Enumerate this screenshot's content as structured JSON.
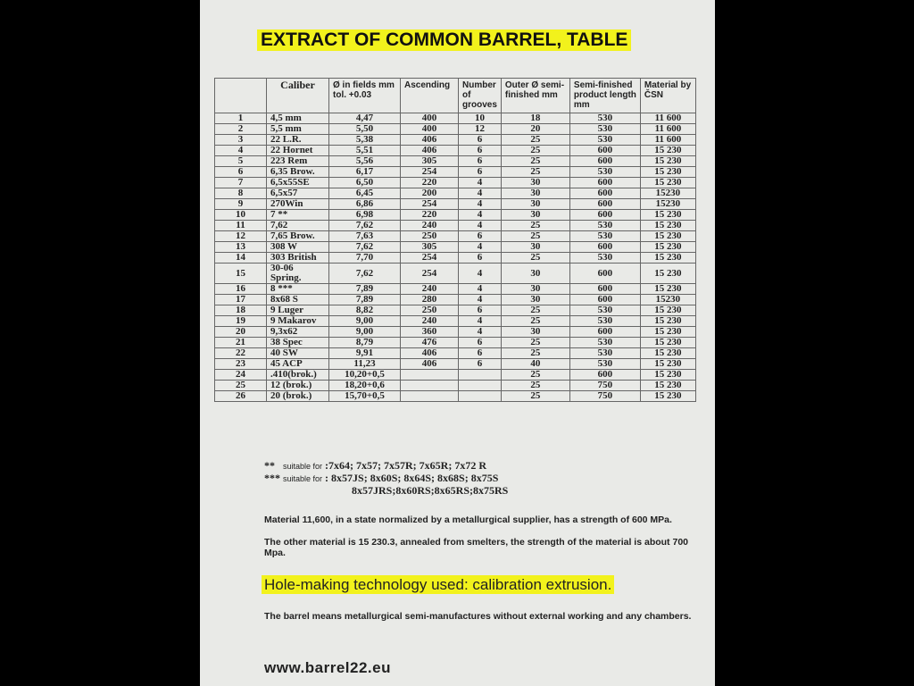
{
  "title": "EXTRACT OF COMMON BARREL, TABLE",
  "table": {
    "headers": [
      "",
      "Caliber",
      "Ø in fields mm tol. +0.03",
      "Ascending",
      "Number of grooves",
      "Outer Ø semi-finished mm",
      "Semi-finished product length mm",
      "Material by ČSN"
    ],
    "rows": [
      [
        "1",
        "4,5 mm",
        "4,47",
        "400",
        "10",
        "18",
        "530",
        "11 600"
      ],
      [
        "2",
        "5,5 mm",
        "5,50",
        "400",
        "12",
        "20",
        "530",
        "11 600"
      ],
      [
        "3",
        "22 L.R.",
        "5,38",
        "406",
        "6",
        "25",
        "530",
        "11 600"
      ],
      [
        "4",
        "22 Hornet",
        "5,51",
        "406",
        "6",
        "25",
        "600",
        "15 230"
      ],
      [
        "5",
        "223 Rem",
        "5,56",
        "305",
        "6",
        "25",
        "600",
        "15 230"
      ],
      [
        "6",
        "6,35 Brow.",
        "6,17",
        "254",
        "6",
        "25",
        "530",
        "15 230"
      ],
      [
        "7",
        "6,5x55SE",
        "6,50",
        "220",
        "4",
        "30",
        "600",
        "15 230"
      ],
      [
        "8",
        "6,5x57",
        "6,45",
        "200",
        "4",
        "30",
        "600",
        "15230"
      ],
      [
        "9",
        "270Win",
        "6,86",
        "254",
        "4",
        "30",
        "600",
        "15230"
      ],
      [
        "10",
        "7 **",
        "6,98",
        "220",
        "4",
        "30",
        "600",
        "15 230"
      ],
      [
        "11",
        "7,62",
        "7,62",
        "240",
        "4",
        "25",
        "530",
        "15 230"
      ],
      [
        "12",
        "7,65 Brow.",
        "7,63",
        "250",
        "6",
        "25",
        "530",
        "15 230"
      ],
      [
        "13",
        "308 W",
        "7,62",
        "305",
        "4",
        "30",
        "600",
        "15 230"
      ],
      [
        "14",
        "303 British",
        "7,70",
        "254",
        "6",
        "25",
        "530",
        "15 230"
      ],
      [
        "15",
        "30-06 Spring.",
        "7,62",
        "254",
        "4",
        "30",
        "600",
        "15 230"
      ],
      [
        "16",
        "8 ***",
        "7,89",
        "240",
        "4",
        "30",
        "600",
        "15 230"
      ],
      [
        "17",
        "8x68 S",
        "7,89",
        "280",
        "4",
        "30",
        "600",
        "15230"
      ],
      [
        "18",
        "9 Luger",
        "8,82",
        "250",
        "6",
        "25",
        "530",
        "15 230"
      ],
      [
        "19",
        "9 Makarov",
        "9,00",
        "240",
        "4",
        "25",
        "530",
        "15 230"
      ],
      [
        "20",
        "9,3x62",
        "9,00",
        "360",
        "4",
        "30",
        "600",
        "15 230"
      ],
      [
        "21",
        "38 Spec",
        "8,79",
        "476",
        "6",
        "25",
        "530",
        "15 230"
      ],
      [
        "22",
        "40 SW",
        "9,91",
        "406",
        "6",
        "25",
        "530",
        "15 230"
      ],
      [
        "23",
        "45 ACP",
        "11,23",
        "406",
        "6",
        "40",
        "530",
        "15 230"
      ],
      [
        "24",
        ".410(brok.)",
        "10,20+0,5",
        "",
        "",
        "25",
        "600",
        "15 230"
      ],
      [
        "25",
        "12 (brok.)",
        "18,20+0,6",
        "",
        "",
        "25",
        "750",
        "15 230"
      ],
      [
        "26",
        "20 (brok.)",
        "15,70+0,5",
        "",
        "",
        "25",
        "750",
        "15 230"
      ]
    ]
  },
  "notes": {
    "n1_mark": "**",
    "n1_label": "suitable for",
    "n1_text": ":7x64; 7x57; 7x57R; 7x65R; 7x72 R",
    "n2_mark": "***",
    "n2_label": "suitable for",
    "n2_text": ": 8x57JS; 8x60S; 8x64S; 8x68S; 8x75S",
    "n2_text2": "8x57JRS;8x60RS;8x65RS;8x75RS"
  },
  "material_text_1": "Material 11,600, in a state normalized by a metallurgical supplier, has a strength of 600 MPa.",
  "material_text_2": "The other material is 15 230.3, annealed from smelters, the strength of the material is about 700 Mpa.",
  "highlight": "Hole-making technology used: calibration extrusion.",
  "barrel_text": "The barrel means metallurgical semi-manufactures without external working and any chambers.",
  "url": "www.barrel22.eu"
}
